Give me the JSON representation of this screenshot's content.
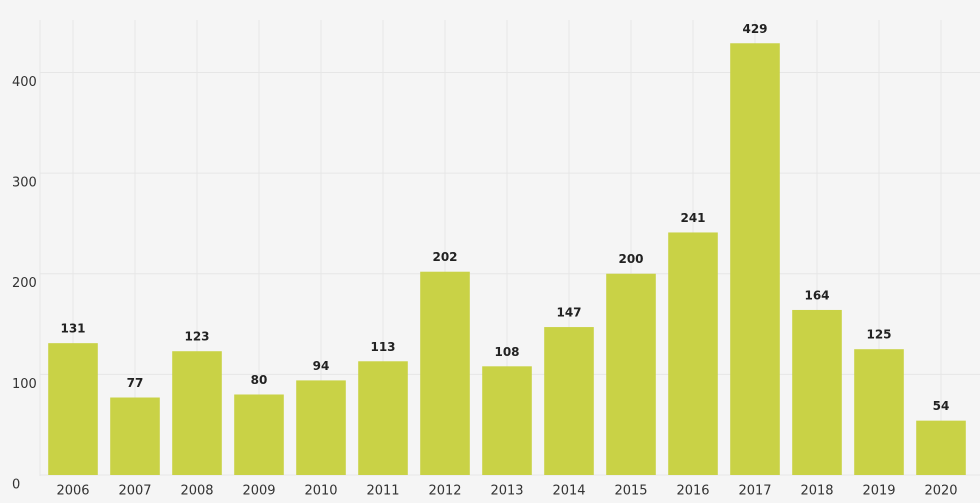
{
  "chart_data": {
    "type": "bar",
    "categories": [
      "2006",
      "2007",
      "2008",
      "2009",
      "2010",
      "2011",
      "2012",
      "2013",
      "2014",
      "2015",
      "2016",
      "2017",
      "2018",
      "2019",
      "2020"
    ],
    "values": [
      131,
      77,
      123,
      80,
      94,
      113,
      202,
      108,
      147,
      200,
      241,
      429,
      164,
      125,
      54
    ],
    "color": "#c9d246",
    "ylim": [
      0,
      470
    ],
    "yticks": [
      0,
      100,
      200,
      300,
      400
    ],
    "grid": true
  }
}
